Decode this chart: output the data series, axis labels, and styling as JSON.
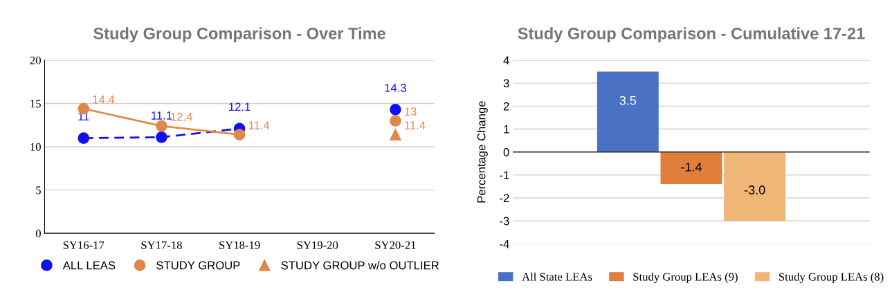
{
  "chart_data": [
    {
      "type": "line",
      "title": "Study Group Comparison - Over Time",
      "categories": [
        "SY16-17",
        "SY17-18",
        "SY18-19",
        "SY19-20",
        "SY20-21"
      ],
      "series": [
        {
          "name": "ALL LEAS",
          "color": "#1010f0",
          "values": [
            11,
            11.1,
            12.1,
            null,
            14.3
          ],
          "line_style": "dashed",
          "marker": "circle"
        },
        {
          "name": "STUDY GROUP",
          "color": "#e0884a",
          "values": [
            14.4,
            12.4,
            11.4,
            null,
            13
          ],
          "line_style": "solid",
          "marker": "circle"
        },
        {
          "name": "STUDY GROUP w/o OUTLIER",
          "color": "#e0884a",
          "values": [
            null,
            null,
            null,
            null,
            11.4
          ],
          "line_style": "solid",
          "marker": "triangle"
        }
      ],
      "ylim": [
        0,
        20
      ],
      "yticks": [
        0,
        5,
        10,
        15,
        20
      ],
      "grid": "y",
      "legend": "bottom",
      "data_labels": true
    },
    {
      "type": "bar",
      "title": "Study Group Comparison - Cumulative 17-21",
      "ylabel": "Percentage Change",
      "categories": [
        null
      ],
      "series": [
        {
          "name": "All State LEAs",
          "color": "#4a72c4",
          "values": [
            3.5
          ],
          "value_labels": [
            "3.5"
          ]
        },
        {
          "name": "Study Group LEAs (9)",
          "color": "#e07f3c",
          "values": [
            -1.4
          ],
          "value_labels": [
            "-1.4"
          ]
        },
        {
          "name": "Study Group LEAs (8)",
          "color": "#efb677",
          "values": [
            -3.0
          ],
          "value_labels": [
            "-3.0"
          ]
        }
      ],
      "ylim": [
        -4,
        4
      ],
      "yticks": [
        -4,
        -3,
        -2,
        -1,
        0,
        1,
        2,
        3,
        4
      ],
      "grid": "y",
      "legend": "bottom"
    }
  ]
}
